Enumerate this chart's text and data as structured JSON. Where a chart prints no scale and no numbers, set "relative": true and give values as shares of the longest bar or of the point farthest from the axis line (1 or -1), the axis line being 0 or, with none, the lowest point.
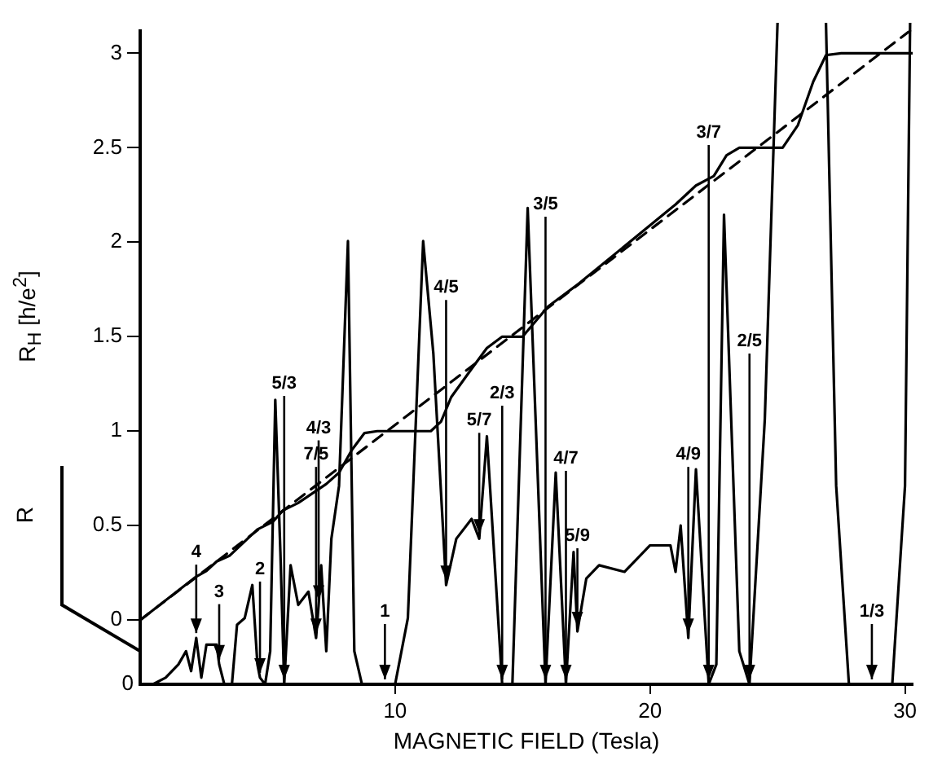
{
  "chart_data": [
    {
      "type": "line",
      "xlabel": "MAGNETIC FIELD (Tesla)",
      "ylabel": "R$_{H}$ [h/e$^{2}$]",
      "xlim": [
        0,
        30.3
      ],
      "xticks": [
        10,
        20,
        30
      ],
      "ylim": [
        -0.34,
        3.12
      ],
      "yticks": [
        0,
        0.5,
        1,
        1.5,
        2,
        2.5,
        3
      ],
      "grid": false,
      "legend": false,
      "line_style": "solid",
      "marker": "none",
      "series": [
        {
          "color": "#000000",
          "x": [
            0,
            2.2,
            2.6,
            3.0,
            3.5,
            4.6,
            5.2,
            5.6,
            6.2,
            7.3,
            7.8,
            8.3,
            8.8,
            9.3,
            11.4,
            11.8,
            12.2,
            13,
            13.6,
            14.2,
            15,
            15.5,
            16,
            16.6,
            17.2,
            21,
            21.8,
            22.5,
            23,
            23.5,
            25.2,
            25.8,
            26.4,
            26.9,
            27.5,
            30.3
          ],
          "values": [
            0,
            0.23,
            0.26,
            0.31,
            0.34,
            0.48,
            0.52,
            0.58,
            0.62,
            0.72,
            0.78,
            0.9,
            0.99,
            1.0,
            1.0,
            1.05,
            1.18,
            1.33,
            1.44,
            1.5,
            1.5,
            1.58,
            1.66,
            1.72,
            1.78,
            2.2,
            2.3,
            2.35,
            2.46,
            2.5,
            2.5,
            2.62,
            2.85,
            2.99,
            3.0,
            3.0
          ]
        },
        {
          "color": "#000000",
          "line_style": "dashed",
          "x": [
            0,
            30.2
          ],
          "values": [
            0,
            3.12
          ]
        }
      ]
    },
    {
      "type": "line",
      "ylabel": "R",
      "relative": true,
      "xlim": [
        0,
        30.3
      ],
      "grid": false,
      "legend": false,
      "line_style": "solid",
      "marker": "none",
      "series": [
        {
          "color": "#000000",
          "x": [
            0,
            0.5,
            1.0,
            1.5,
            1.8,
            2.0,
            2.2,
            2.4,
            2.6,
            3.0,
            3.1,
            3.3,
            3.6,
            3.8,
            4.1,
            4.4,
            4.6,
            4.7,
            4.9,
            5.1,
            5.3,
            5.5,
            5.65,
            5.9,
            6.2,
            6.6,
            6.9,
            7.0,
            7.1,
            7.3,
            7.5,
            7.8,
            8.15,
            8.4,
            8.7,
            9.6,
            10.0,
            10.5,
            11.1,
            11.5,
            12.0,
            12.4,
            13.0,
            13.3,
            13.6,
            14.2,
            14.6,
            15.2,
            15.9,
            16.3,
            16.7,
            17.0,
            17.15,
            17.5,
            18,
            19,
            20,
            20.8,
            21.0,
            21.2,
            21.5,
            21.8,
            22.3,
            22.6,
            22.9,
            23.5,
            23.9,
            24.5,
            25.0,
            25.5,
            26.9,
            27.3,
            27.8,
            28.7,
            29.5,
            30.0,
            30.2
          ],
          "values": [
            0,
            0,
            0.01,
            0.03,
            0.05,
            0.02,
            0.07,
            0.01,
            0.06,
            0.06,
            0.03,
            0,
            0,
            0.09,
            0.1,
            0.15,
            0.03,
            0.01,
            0,
            0.05,
            0.43,
            0.2,
            0,
            0.18,
            0.12,
            0.14,
            0.07,
            0.12,
            0.18,
            0.05,
            0.22,
            0.3,
            0.67,
            0.05,
            0,
            0,
            0,
            0.1,
            0.67,
            0.5,
            0.15,
            0.22,
            0.25,
            0.22,
            0.375,
            0,
            0,
            0.72,
            0,
            0.32,
            0,
            0.2,
            0.08,
            0.16,
            0.18,
            0.17,
            0.21,
            0.21,
            0.17,
            0.24,
            0.07,
            0.325,
            0,
            0.03,
            0.71,
            0.05,
            0,
            0.4,
            1,
            null,
            1,
            0.3,
            0,
            0,
            0,
            0.3,
            1
          ]
        }
      ],
      "annotations": [
        "0",
        {
          "text": "4",
          "x": 2.2,
          "y": 0.07
        },
        {
          "text": "3",
          "x": 3.1,
          "y": 0.03
        },
        {
          "text": "2",
          "x": 4.7,
          "y": 0.01
        },
        {
          "text": "5/3",
          "x": 5.65,
          "y": 0
        },
        {
          "text": "7/5",
          "x": 6.9,
          "y": 0.07
        },
        {
          "text": "4/3",
          "x": 7.0,
          "y": 0.12
        },
        {
          "text": "1",
          "x": 9.6,
          "y": 0
        },
        {
          "text": "4/5",
          "x": 12.0,
          "y": 0.15
        },
        {
          "text": "5/7",
          "x": 13.3,
          "y": 0.22
        },
        {
          "text": "2/3",
          "x": 14.2,
          "y": 0
        },
        {
          "text": "3/5",
          "x": 15.9,
          "y": 0
        },
        {
          "text": "4/7",
          "x": 16.7,
          "y": 0
        },
        {
          "text": "5/9",
          "x": 17.15,
          "y": 0.08
        },
        {
          "text": "4/9",
          "x": 21.5,
          "y": 0.07
        },
        {
          "text": "3/7",
          "x": 22.3,
          "y": 0
        },
        {
          "text": "2/5",
          "x": 23.9,
          "y": 0
        },
        {
          "text": "1/3",
          "x": 28.7,
          "y": 0
        }
      ]
    }
  ]
}
